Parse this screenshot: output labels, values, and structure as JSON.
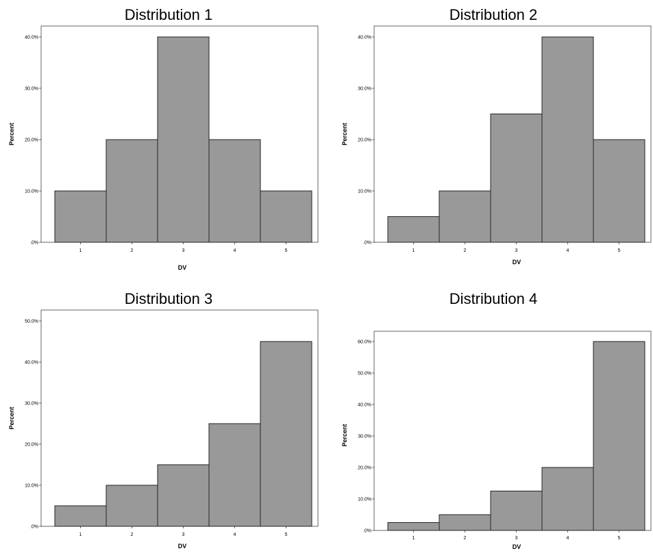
{
  "colors": {
    "bar": "#999999",
    "bar_edge": "#222222",
    "background": "#ffffff"
  },
  "chart_data": [
    {
      "type": "bar",
      "title": "Distribution 1",
      "xlabel": "DV",
      "ylabel": "Percent",
      "categories": [
        "1",
        "2",
        "3",
        "4",
        "5"
      ],
      "values": [
        10,
        20,
        40,
        20,
        10
      ],
      "ylim": [
        0,
        40
      ],
      "yticks": [
        ".0%",
        "10.0%",
        "20.0%",
        "30.0%",
        "40.0%"
      ],
      "grid": false
    },
    {
      "type": "bar",
      "title": "Distribution 2",
      "xlabel": "DV",
      "ylabel": "Percent",
      "categories": [
        "1",
        "2",
        "3",
        "4",
        "5"
      ],
      "values": [
        5,
        10,
        25,
        40,
        20
      ],
      "ylim": [
        0,
        40
      ],
      "yticks": [
        ".0%",
        "10.0%",
        "20.0%",
        "30.0%",
        "40.0%"
      ],
      "grid": false
    },
    {
      "type": "bar",
      "title": "Distribution 3",
      "xlabel": "DV",
      "ylabel": "Percent",
      "categories": [
        "1",
        "2",
        "3",
        "4",
        "5"
      ],
      "values": [
        5,
        10,
        15,
        25,
        45
      ],
      "ylim": [
        0,
        50
      ],
      "yticks": [
        ".0%",
        "10.0%",
        "20.0%",
        "30.0%",
        "40.0%",
        "50.0%"
      ],
      "grid": false
    },
    {
      "type": "bar",
      "title": "Distribution 4",
      "xlabel": "DV",
      "ylabel": "Percent",
      "categories": [
        "1",
        "2",
        "3",
        "4",
        "5"
      ],
      "values": [
        2.5,
        5,
        12.5,
        20,
        60
      ],
      "ylim": [
        0,
        60
      ],
      "yticks": [
        ".0%",
        "10.0%",
        "20.0%",
        "30.0%",
        "40.0%",
        "50.0%",
        "60.0%"
      ],
      "grid": false
    }
  ]
}
